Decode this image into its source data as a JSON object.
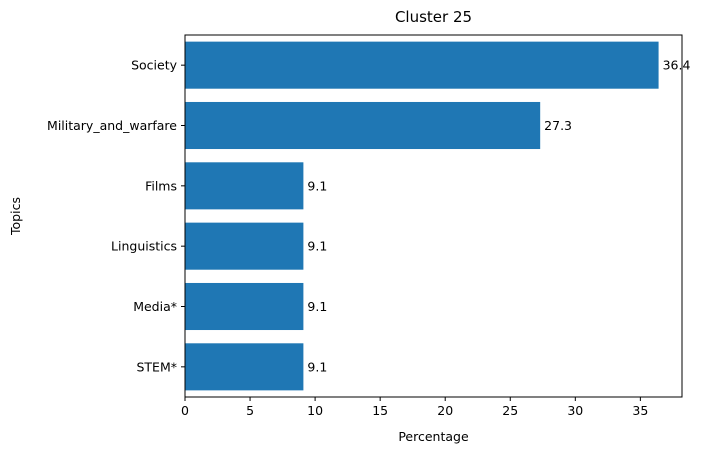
{
  "chart_data": {
    "type": "bar",
    "orientation": "horizontal",
    "title": "Cluster 25",
    "xlabel": "Percentage",
    "ylabel": "Topics",
    "categories": [
      "Society",
      "Military_and_warfare",
      "Films",
      "Linguistics",
      "Media*",
      "STEM*"
    ],
    "values": [
      36.4,
      27.3,
      9.1,
      9.1,
      9.1,
      9.1
    ],
    "value_labels": [
      "36.4",
      "27.3",
      "9.1",
      "9.1",
      "9.1",
      "9.1"
    ],
    "xlim": [
      0,
      38.2
    ],
    "xticks": [
      0,
      5,
      10,
      15,
      20,
      25,
      30,
      35
    ],
    "grid": false,
    "legend": "none",
    "bar_color": "#1f77b4"
  }
}
